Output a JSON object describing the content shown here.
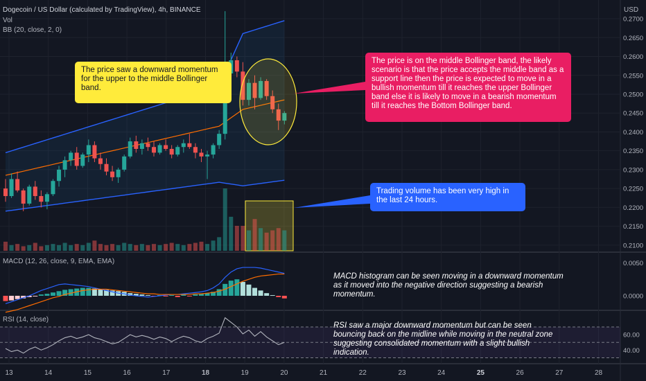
{
  "header": {
    "symbol": "Dogecoin / US Dollar (calculated by TradingView), 4h, BINANCE",
    "volume_label": "Vol",
    "bb_label": "BB (20, close, 2, 0)",
    "macd_label": "MACD (12, 26, close, 9, EMA, EMA)",
    "rsi_label": "RSI (14, close)",
    "currency": "USD"
  },
  "colors": {
    "background": "#131722",
    "bullish": "#26a69a",
    "bearish": "#ef5350",
    "bb_band": "#2962ff",
    "bb_basis": "#ff6d00",
    "macd_line": "#2962ff",
    "signal_line": "#ff6d00",
    "rsi_line": "#b2b5be",
    "rsi_zone": "#7e57c2"
  },
  "annotations": {
    "yellow_note": "The price saw a downward momentum for the upper to the middle Bollinger band.",
    "red_note": "The price is on the middle Bollinger band, the likely scenario is that the price accepts the middle band as a support line then the price is expected to move in a bullish momentum till it reaches the upper Bollinger band else it is likely to move in a bearish momentum till it reaches the Bottom Bollinger band.",
    "blue_note": "Trading volume has been very high in the last 24 hours.",
    "macd_note": "MACD histogram can be seen moving in a downward momentum as it moved into the negative direction suggesting a bearish momentum.",
    "rsi_note": "RSI saw a major downward momentum but can be seen bouncing back on the midline while moving in the neutral zone suggesting consolidated momentum with a slight bullish indication."
  },
  "chart_data": [
    {
      "type": "candlestick",
      "title": "Dogecoin / US Dollar (calculated by TradingView), 4h, BINANCE",
      "x_ticks": [
        "13",
        "14",
        "15",
        "16",
        "17",
        "18",
        "19",
        "20",
        "21",
        "22",
        "23",
        "24",
        "25",
        "26",
        "27",
        "28"
      ],
      "y_ticks": [
        "0.2700",
        "0.2650",
        "0.2600",
        "0.2550",
        "0.2500",
        "0.2450",
        "0.2400",
        "0.2350",
        "0.2300",
        "0.2250",
        "0.2200",
        "0.2150",
        "0.2100"
      ],
      "ylim": [
        0.2085,
        0.2735
      ],
      "ohlc": [
        [
          0.225,
          0.2275,
          0.2215,
          0.223
        ],
        [
          0.223,
          0.229,
          0.2225,
          0.2275
        ],
        [
          0.2275,
          0.2295,
          0.224,
          0.2245
        ],
        [
          0.2245,
          0.225,
          0.219,
          0.221
        ],
        [
          0.221,
          0.226,
          0.2205,
          0.2255
        ],
        [
          0.2255,
          0.227,
          0.222,
          0.223
        ],
        [
          0.223,
          0.2245,
          0.22,
          0.2215
        ],
        [
          0.2215,
          0.224,
          0.2195,
          0.2235
        ],
        [
          0.2235,
          0.2275,
          0.223,
          0.227
        ],
        [
          0.227,
          0.231,
          0.2255,
          0.23
        ],
        [
          0.23,
          0.2335,
          0.228,
          0.2325
        ],
        [
          0.2325,
          0.235,
          0.231,
          0.2345
        ],
        [
          0.2345,
          0.236,
          0.23,
          0.231
        ],
        [
          0.231,
          0.2345,
          0.2305,
          0.234
        ],
        [
          0.234,
          0.238,
          0.232,
          0.2365
        ],
        [
          0.2365,
          0.2375,
          0.232,
          0.233
        ],
        [
          0.233,
          0.2345,
          0.23,
          0.2315
        ],
        [
          0.2315,
          0.233,
          0.2285,
          0.2295
        ],
        [
          0.2295,
          0.231,
          0.227,
          0.228
        ],
        [
          0.228,
          0.2305,
          0.2265,
          0.23
        ],
        [
          0.23,
          0.234,
          0.2295,
          0.2335
        ],
        [
          0.2335,
          0.2385,
          0.233,
          0.2375
        ],
        [
          0.2375,
          0.239,
          0.2345,
          0.2355
        ],
        [
          0.2355,
          0.238,
          0.234,
          0.237
        ],
        [
          0.237,
          0.2385,
          0.235,
          0.236
        ],
        [
          0.236,
          0.2375,
          0.2335,
          0.2345
        ],
        [
          0.2345,
          0.237,
          0.234,
          0.2365
        ],
        [
          0.2365,
          0.238,
          0.235,
          0.2355
        ],
        [
          0.2355,
          0.2365,
          0.233,
          0.234
        ],
        [
          0.234,
          0.2365,
          0.2335,
          0.236
        ],
        [
          0.236,
          0.238,
          0.2345,
          0.237
        ],
        [
          0.237,
          0.2395,
          0.2355,
          0.236
        ],
        [
          0.236,
          0.237,
          0.233,
          0.2345
        ],
        [
          0.2345,
          0.2355,
          0.232,
          0.2335
        ],
        [
          0.2335,
          0.235,
          0.2275,
          0.234
        ],
        [
          0.234,
          0.237,
          0.233,
          0.2365
        ],
        [
          0.2365,
          0.2405,
          0.2355,
          0.2395
        ],
        [
          0.2395,
          0.272,
          0.238,
          0.2555
        ],
        [
          0.2555,
          0.261,
          0.253,
          0.259
        ],
        [
          0.259,
          0.26,
          0.2545,
          0.256
        ],
        [
          0.256,
          0.2585,
          0.247,
          0.2485
        ],
        [
          0.2485,
          0.254,
          0.247,
          0.253
        ],
        [
          0.253,
          0.255,
          0.246,
          0.249
        ],
        [
          0.249,
          0.2545,
          0.2485,
          0.2535
        ],
        [
          0.2535,
          0.254,
          0.2485,
          0.2495
        ],
        [
          0.2495,
          0.251,
          0.245,
          0.246
        ],
        [
          0.246,
          0.2475,
          0.2405,
          0.243
        ],
        [
          0.243,
          0.2455,
          0.242,
          0.245
        ]
      ],
      "volume": [
        8,
        5,
        6,
        4,
        5,
        7,
        4,
        5,
        6,
        5,
        7,
        5,
        6,
        5,
        7,
        9,
        6,
        5,
        6,
        5,
        7,
        6,
        5,
        6,
        5,
        6,
        5,
        6,
        7,
        6,
        5,
        6,
        7,
        8,
        6,
        9,
        12,
        55,
        30,
        22,
        22,
        18,
        28,
        20,
        16,
        18,
        20,
        18
      ],
      "bollinger": {
        "upper_start": 0.2345,
        "upper_end": 0.2575,
        "basis_start": 0.2285,
        "basis_end": 0.2455,
        "lower_start": 0.219,
        "lower_end": 0.229
      }
    },
    {
      "type": "bar",
      "title": "MACD (12, 26, close, 9, EMA, EMA)",
      "y_ticks": [
        "0.0050",
        "0.0000"
      ],
      "ylim": [
        -0.002,
        0.0062
      ],
      "histogram": [
        -0.0008,
        -0.0007,
        -0.0005,
        -0.0004,
        -0.0002,
        -0.0001,
        0.0002,
        0.0003,
        0.0005,
        0.0007,
        0.0009,
        0.001,
        0.0011,
        0.0012,
        0.0012,
        0.0011,
        0.001,
        0.0009,
        0.0008,
        0.0007,
        0.0006,
        0.0004,
        0.0003,
        0.0002,
        0.0001,
        -0.0001,
        0.0001,
        -0.0001,
        0.0001,
        -0.0002,
        0.0002,
        -0.0001,
        0.0002,
        0.0003,
        0.0004,
        0.0006,
        0.001,
        0.0018,
        0.0023,
        0.0025,
        0.0021,
        0.0017,
        0.0012,
        0.0008,
        0.0004,
        0.0001,
        -0.0002,
        -0.0004
      ],
      "macd_line": [
        -0.0012,
        -0.0009,
        -0.0006,
        -0.0003,
        0.0,
        0.0004,
        0.0008,
        0.0011,
        0.0014,
        0.0017,
        0.0018,
        0.0017,
        0.0016,
        0.0015,
        0.0014,
        0.0012,
        0.001,
        0.0008,
        0.0006,
        0.0004,
        0.0003,
        0.0001,
        0.0,
        -0.0001,
        -0.0002,
        -0.0001,
        0.0,
        0.0001,
        0.0002,
        0.0002,
        0.0003,
        0.0004,
        0.0005,
        0.0006,
        0.0008,
        0.0012,
        0.0018,
        0.0028,
        0.0036,
        0.0041,
        0.0043,
        0.0043,
        0.0043,
        0.0042,
        0.004,
        0.0038,
        0.0036,
        0.0034
      ],
      "signal_line": [
        -0.0025,
        -0.0023,
        -0.0021,
        -0.0018,
        -0.0015,
        -0.0012,
        -0.0009,
        -0.0006,
        -0.0003,
        -0.0001,
        0.0002,
        0.0004,
        0.0006,
        0.0008,
        0.0009,
        0.001,
        0.001,
        0.001,
        0.0009,
        0.0008,
        0.0007,
        0.0006,
        0.0005,
        0.0004,
        0.0003,
        0.0003,
        0.0002,
        0.0002,
        0.0002,
        0.0002,
        0.0002,
        0.0002,
        0.0003,
        0.0003,
        0.0004,
        0.0005,
        0.0007,
        0.001,
        0.0014,
        0.0018,
        0.0022,
        0.0025,
        0.0028,
        0.003,
        0.0031,
        0.0032,
        0.0033,
        0.0033
      ]
    },
    {
      "type": "line",
      "title": "RSI (14, close)",
      "y_ticks": [
        "60.00",
        "40.00"
      ],
      "ylim": [
        25,
        88
      ],
      "bands": [
        70,
        50,
        30
      ],
      "values": [
        42,
        38,
        40,
        36,
        41,
        44,
        40,
        43,
        47,
        52,
        56,
        58,
        55,
        57,
        60,
        56,
        54,
        51,
        48,
        50,
        55,
        60,
        57,
        59,
        57,
        54,
        57,
        55,
        51,
        55,
        58,
        56,
        52,
        50,
        55,
        58,
        62,
        82,
        76,
        70,
        61,
        66,
        58,
        64,
        57,
        52,
        47,
        50
      ]
    }
  ]
}
